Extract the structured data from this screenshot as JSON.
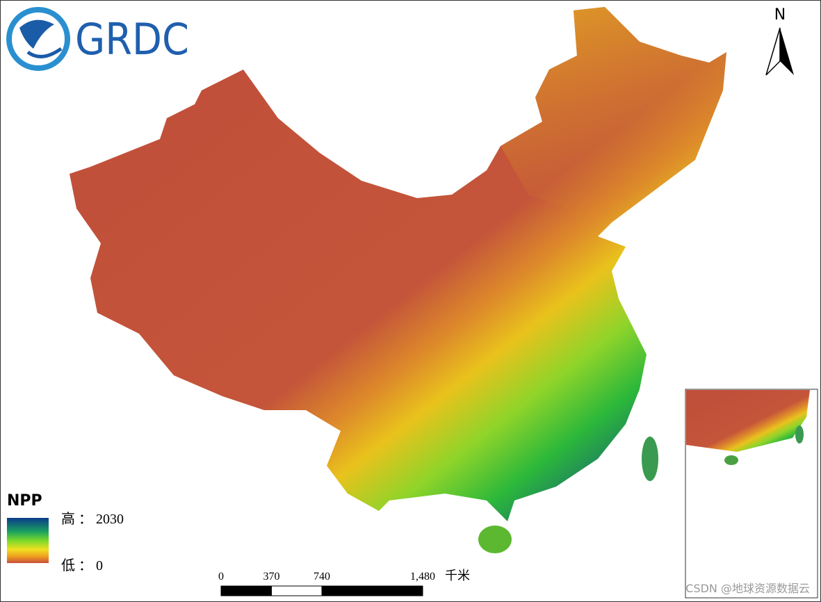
{
  "logo": {
    "text": "GRDC"
  },
  "north_arrow": {
    "label": "N"
  },
  "legend": {
    "title": "NPP",
    "high": "高 ： 2030",
    "low": "低 ： 0"
  },
  "scale_bar": {
    "ticks": [
      0,
      370,
      740,
      {
        "value": 1480,
        "label": "1,480"
      }
    ],
    "unit": "千米"
  },
  "watermark": "CSDN @地球资源数据云"
}
